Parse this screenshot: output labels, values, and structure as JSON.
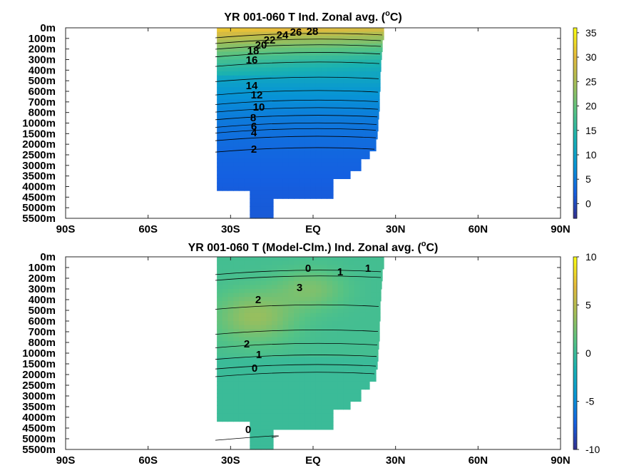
{
  "chart_data": [
    {
      "type": "heatmap",
      "title": "YR 001-060 T Ind. Zonal avg. (",
      "title_sup": "o",
      "title_tail": "C)",
      "x_ticks": [
        "90S",
        "60S",
        "30S",
        "EQ",
        "30N",
        "60N",
        "90N"
      ],
      "x_values": [
        -90,
        -60,
        -30,
        0,
        30,
        60,
        90
      ],
      "xlim": [
        -90,
        90
      ],
      "y_ticks": [
        "0m",
        "100m",
        "200m",
        "300m",
        "400m",
        "500m",
        "600m",
        "700m",
        "800m",
        "1000m",
        "1500m",
        "2000m",
        "2500m",
        "3000m",
        "3500m",
        "4000m",
        "4500m",
        "5000m",
        "5500m"
      ],
      "colorbar": {
        "ticks": [
          "35",
          "30",
          "25",
          "20",
          "15",
          "10",
          "5",
          "0"
        ],
        "tick_values": [
          35,
          30,
          25,
          20,
          15,
          10,
          5,
          0
        ],
        "range": [
          -3,
          36
        ]
      },
      "contour_labels": [
        "28",
        "26",
        "24",
        "22",
        "20",
        "18",
        "16",
        "14",
        "12",
        "10",
        "8",
        "6",
        "4",
        "2"
      ],
      "grid": false
    },
    {
      "type": "heatmap",
      "title": "YR 001-060 T (Model-Clm.) Ind. Zonal avg. (",
      "title_sup": "o",
      "title_tail": "C)",
      "x_ticks": [
        "90S",
        "60S",
        "30S",
        "EQ",
        "30N",
        "60N",
        "90N"
      ],
      "x_values": [
        -90,
        -60,
        -30,
        0,
        30,
        60,
        90
      ],
      "xlim": [
        -90,
        90
      ],
      "y_ticks": [
        "0m",
        "100m",
        "200m",
        "300m",
        "400m",
        "500m",
        "600m",
        "700m",
        "800m",
        "1000m",
        "1500m",
        "2000m",
        "2500m",
        "3000m",
        "3500m",
        "4000m",
        "4500m",
        "5000m",
        "5500m"
      ],
      "colorbar": {
        "ticks": [
          "10",
          "5",
          "0",
          "-5",
          "-10"
        ],
        "tick_values": [
          10,
          5,
          0,
          -5,
          -10
        ],
        "range": [
          -10,
          10
        ]
      },
      "contour_labels": [
        "0",
        "1",
        "1",
        "3",
        "2",
        "2",
        "1",
        "0",
        "0"
      ],
      "grid": false
    }
  ]
}
